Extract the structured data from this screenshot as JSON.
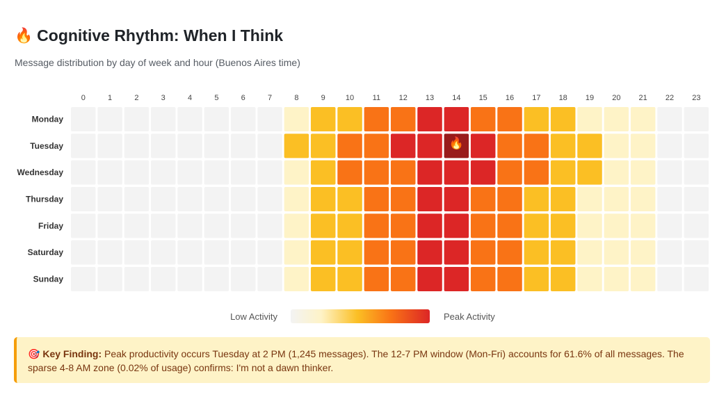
{
  "header": {
    "title_icon": "🔥",
    "title": "Cognitive Rhythm: When I Think",
    "subtitle": "Message distribution by day of week and hour (Buenos Aires time)"
  },
  "chart_data": {
    "type": "heatmap",
    "title": "Cognitive Rhythm: When I Think",
    "x": [
      "0",
      "1",
      "2",
      "3",
      "4",
      "5",
      "6",
      "7",
      "8",
      "9",
      "10",
      "11",
      "12",
      "13",
      "14",
      "15",
      "16",
      "17",
      "18",
      "19",
      "20",
      "21",
      "22",
      "23"
    ],
    "y": [
      "Monday",
      "Tuesday",
      "Wednesday",
      "Thursday",
      "Friday",
      "Saturday",
      "Sunday"
    ],
    "levels_description": "0 = none, 1 = low, 2 = medium, 3 = high, 4 = very high, 5 = peak",
    "levels": [
      [
        0,
        0,
        0,
        0,
        0,
        0,
        0,
        0,
        1,
        2,
        2,
        3,
        3,
        4,
        4,
        3,
        3,
        2,
        2,
        1,
        1,
        1,
        0,
        0
      ],
      [
        0,
        0,
        0,
        0,
        0,
        0,
        0,
        0,
        2,
        2,
        3,
        3,
        4,
        4,
        5,
        4,
        3,
        3,
        2,
        2,
        1,
        1,
        0,
        0
      ],
      [
        0,
        0,
        0,
        0,
        0,
        0,
        0,
        0,
        1,
        2,
        3,
        3,
        3,
        4,
        4,
        4,
        3,
        3,
        2,
        2,
        1,
        1,
        0,
        0
      ],
      [
        0,
        0,
        0,
        0,
        0,
        0,
        0,
        0,
        1,
        2,
        2,
        3,
        3,
        4,
        4,
        3,
        3,
        2,
        2,
        1,
        1,
        1,
        0,
        0
      ],
      [
        0,
        0,
        0,
        0,
        0,
        0,
        0,
        0,
        1,
        2,
        2,
        3,
        3,
        4,
        4,
        3,
        3,
        2,
        2,
        1,
        1,
        1,
        0,
        0
      ],
      [
        0,
        0,
        0,
        0,
        0,
        0,
        0,
        0,
        1,
        2,
        2,
        3,
        3,
        4,
        4,
        3,
        3,
        2,
        2,
        1,
        1,
        1,
        0,
        0
      ],
      [
        0,
        0,
        0,
        0,
        0,
        0,
        0,
        0,
        1,
        2,
        2,
        3,
        3,
        4,
        4,
        3,
        3,
        2,
        2,
        1,
        1,
        1,
        0,
        0
      ]
    ],
    "peak": {
      "day": "Tuesday",
      "hour": "14",
      "marker": "🔥"
    },
    "colors": [
      "#f3f3f3",
      "#fef3c7",
      "#fbbf24",
      "#f97316",
      "#dc2626",
      "#991b1b"
    ],
    "legend": {
      "low": "Low Activity",
      "high": "Peak Activity"
    }
  },
  "finding": {
    "icon": "🎯",
    "label": "Key Finding:",
    "text": " Peak productivity occurs Tuesday at 2 PM (1,245 messages). The 12-7 PM window (Mon-Fri) accounts for 61.6% of all messages. The sparse 4-8 AM zone (0.02% of usage) confirms: I'm not a dawn thinker."
  }
}
